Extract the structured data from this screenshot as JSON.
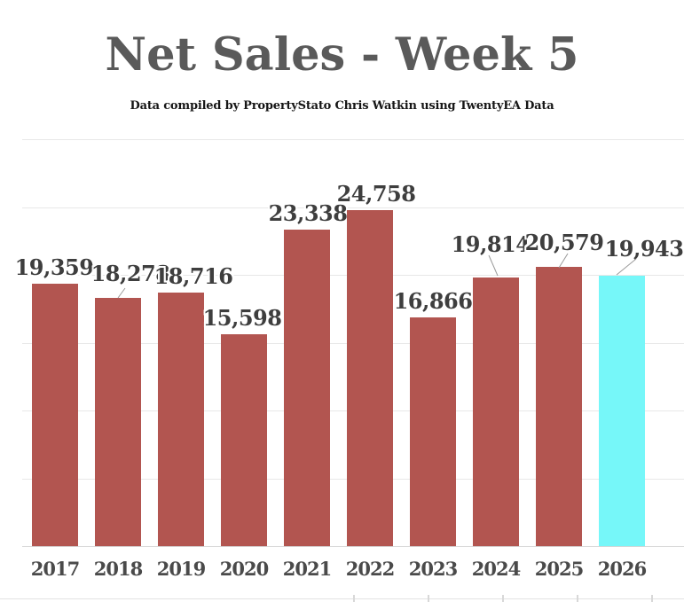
{
  "header": {
    "title": "Net Sales - Week 5",
    "subtitle": "Data compiled by PropertyStato Chris Watkin using TwentyEA Data"
  },
  "chart_data": {
    "type": "bar",
    "title": "Net Sales - Week 5",
    "subtitle": "Data compiled by PropertyStato Chris Watkin using TwentyEA Data",
    "categories": [
      "2017",
      "2018",
      "2019",
      "2020",
      "2021",
      "2022",
      "2023",
      "2024",
      "2025",
      "2026"
    ],
    "values": [
      19359,
      18278,
      18716,
      15598,
      23338,
      24758,
      16866,
      19814,
      20579,
      19943
    ],
    "data_labels": [
      "19,359",
      "18,278",
      "18,716",
      "15,598",
      "23,338",
      "24,758",
      "16,866",
      "19,814",
      "20,579",
      "19,943"
    ],
    "xlabel": "",
    "ylabel": "",
    "ylim": [
      0,
      30000
    ],
    "gridline_step": 5000,
    "grid": true,
    "legend": "none",
    "y_axis_labels_visible": false,
    "bar_color": "#b25550",
    "highlight_color": "#76f7f9",
    "highlight_index": 9,
    "label_color": "#3e3e3e",
    "callout_indices": [
      1,
      7,
      8,
      9
    ]
  }
}
